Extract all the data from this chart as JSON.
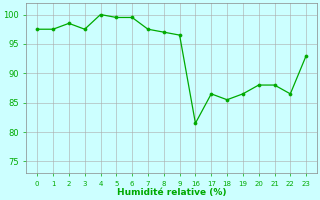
{
  "x_indices": [
    0,
    1,
    2,
    3,
    4,
    5,
    6,
    7,
    8,
    9,
    10,
    11,
    12,
    13,
    14,
    15,
    16,
    17
  ],
  "x_labels": [
    "0",
    "1",
    "2",
    "3",
    "4",
    "5",
    "6",
    "7",
    "8",
    "9",
    "16",
    "17",
    "18",
    "19",
    "20",
    "21",
    "22",
    "23"
  ],
  "y_values": [
    97.5,
    97.5,
    98.5,
    97.5,
    100,
    99.5,
    99.5,
    97.5,
    97,
    96.5,
    81.5,
    86.5,
    85.5,
    86.5,
    88,
    88,
    86.5,
    93
  ],
  "line_color": "#00aa00",
  "marker_color": "#00aa00",
  "bg_color": "#ccffff",
  "grid_color_major": "#bbbbbb",
  "grid_color_minor": "#dddddd",
  "xlabel": "Humidité relative (%)",
  "yticks": [
    75,
    80,
    85,
    90,
    95,
    100
  ],
  "ylim": [
    73,
    102
  ],
  "xlim": [
    -0.7,
    17.7
  ]
}
